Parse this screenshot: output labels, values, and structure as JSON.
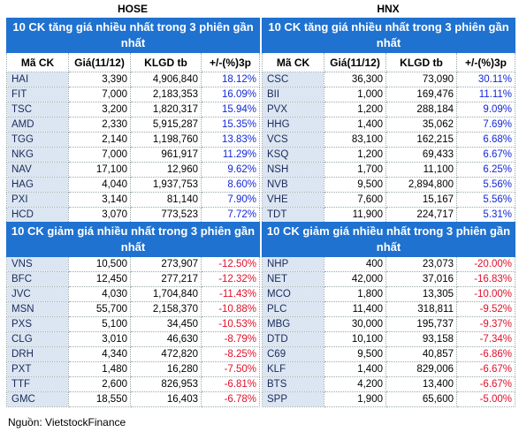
{
  "panels": [
    {
      "exchange": "HOSE",
      "gainers": {
        "title": "10 CK tăng giá nhiều nhất trong 3 phiên gần nhất",
        "header": [
          "Mã CK",
          "Giá(11/12)",
          "KLGD tb",
          "+/-(%)3p"
        ],
        "rows": [
          [
            "HAI",
            "3,390",
            "4,906,840",
            "18.12%"
          ],
          [
            "FIT",
            "7,000",
            "2,183,353",
            "16.09%"
          ],
          [
            "TSC",
            "3,200",
            "1,820,317",
            "15.94%"
          ],
          [
            "AMD",
            "2,330",
            "5,915,287",
            "15.35%"
          ],
          [
            "TGG",
            "2,140",
            "1,198,760",
            "13.83%"
          ],
          [
            "NKG",
            "7,000",
            "961,917",
            "11.29%"
          ],
          [
            "NAV",
            "17,100",
            "12,960",
            "9.62%"
          ],
          [
            "HAG",
            "4,040",
            "1,937,753",
            "8.60%"
          ],
          [
            "PXI",
            "3,140",
            "81,140",
            "7.90%"
          ],
          [
            "HCD",
            "3,070",
            "773,523",
            "7.72%"
          ]
        ]
      },
      "losers": {
        "title": "10 CK giảm giá nhiều nhất trong 3 phiên gần nhất",
        "rows": [
          [
            "VNS",
            "10,500",
            "273,907",
            "-12.50%"
          ],
          [
            "BFC",
            "12,450",
            "277,217",
            "-12.32%"
          ],
          [
            "JVC",
            "4,030",
            "1,704,840",
            "-11.43%"
          ],
          [
            "MSN",
            "55,700",
            "2,158,370",
            "-10.88%"
          ],
          [
            "PXS",
            "5,100",
            "34,450",
            "-10.53%"
          ],
          [
            "CLG",
            "3,010",
            "46,630",
            "-8.79%"
          ],
          [
            "DRH",
            "4,340",
            "472,820",
            "-8.25%"
          ],
          [
            "PXT",
            "1,480",
            "16,280",
            "-7.50%"
          ],
          [
            "TTF",
            "2,600",
            "826,953",
            "-6.81%"
          ],
          [
            "GMC",
            "18,550",
            "16,403",
            "-6.78%"
          ]
        ]
      }
    },
    {
      "exchange": "HNX",
      "gainers": {
        "title": "10 CK tăng giá nhiều nhất trong 3 phiên gần nhất",
        "header": [
          "Mã CK",
          "Giá(11/12)",
          "KLGD tb",
          "+/-(%)3p"
        ],
        "rows": [
          [
            "CSC",
            "36,300",
            "73,090",
            "30.11%"
          ],
          [
            "BII",
            "1,000",
            "169,476",
            "11.11%"
          ],
          [
            "PVX",
            "1,200",
            "288,184",
            "9.09%"
          ],
          [
            "HHG",
            "1,400",
            "35,062",
            "7.69%"
          ],
          [
            "VCS",
            "83,100",
            "162,215",
            "6.68%"
          ],
          [
            "KSQ",
            "1,200",
            "69,433",
            "6.67%"
          ],
          [
            "NSH",
            "1,700",
            "11,100",
            "6.25%"
          ],
          [
            "NVB",
            "9,500",
            "2,894,800",
            "5.56%"
          ],
          [
            "VHE",
            "7,600",
            "15,167",
            "5.56%"
          ],
          [
            "TDT",
            "11,900",
            "224,717",
            "5.31%"
          ]
        ]
      },
      "losers": {
        "title": "10 CK giảm giá nhiều nhất trong 3 phiên gần nhất",
        "rows": [
          [
            "NHP",
            "400",
            "23,073",
            "-20.00%"
          ],
          [
            "NET",
            "42,000",
            "37,016",
            "-16.83%"
          ],
          [
            "MCO",
            "1,800",
            "13,305",
            "-10.00%"
          ],
          [
            "PLC",
            "11,400",
            "318,811",
            "-9.52%"
          ],
          [
            "MBG",
            "30,000",
            "195,737",
            "-9.37%"
          ],
          [
            "DTD",
            "10,100",
            "93,158",
            "-7.34%"
          ],
          [
            "C69",
            "9,500",
            "40,857",
            "-6.86%"
          ],
          [
            "KLF",
            "1,400",
            "829,006",
            "-6.67%"
          ],
          [
            "BTS",
            "4,200",
            "13,400",
            "-6.67%"
          ],
          [
            "SPP",
            "1,900",
            "65,600",
            "-5.00%"
          ]
        ]
      }
    }
  ],
  "source": "Nguồn: VietstockFinance"
}
